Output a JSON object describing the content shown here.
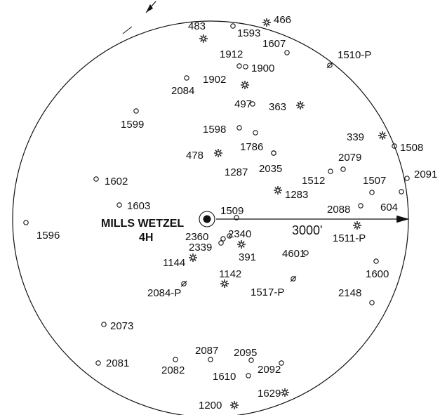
{
  "center_well": {
    "name_line1": "MILLS WETZEL",
    "name_line2": "4H"
  },
  "radius_label": "3000'",
  "wells": [
    {
      "label": "466",
      "type": "gas"
    },
    {
      "label": "483",
      "type": "gas"
    },
    {
      "label": "1593",
      "type": "location"
    },
    {
      "label": "1607",
      "type": "location"
    },
    {
      "label": "1510-P",
      "type": "plugged"
    },
    {
      "label": "1912",
      "type": "location"
    },
    {
      "label": "1900",
      "type": "location"
    },
    {
      "label": "1902",
      "type": "gas"
    },
    {
      "label": "2084",
      "type": "location"
    },
    {
      "label": "497",
      "type": "location"
    },
    {
      "label": "363",
      "type": "gas"
    },
    {
      "label": "1599",
      "type": "location"
    },
    {
      "label": "1598",
      "type": "location"
    },
    {
      "label": "1786",
      "type": "location"
    },
    {
      "label": "339",
      "type": "gas"
    },
    {
      "label": "1508",
      "type": "location"
    },
    {
      "label": "478",
      "type": "gas"
    },
    {
      "label": "2079",
      "type": "location"
    },
    {
      "label": "1287",
      "type": "location"
    },
    {
      "label": "2035",
      "type": "location"
    },
    {
      "label": "1512",
      "type": "location"
    },
    {
      "label": "1507",
      "type": "location"
    },
    {
      "label": "2091",
      "type": "location"
    },
    {
      "label": "1602",
      "type": "location"
    },
    {
      "label": "1283",
      "type": "gas"
    },
    {
      "label": "1603",
      "type": "location"
    },
    {
      "label": "604",
      "type": "location"
    },
    {
      "label": "1509",
      "type": "location"
    },
    {
      "label": "2088",
      "type": "location"
    },
    {
      "label": "1596",
      "type": "location"
    },
    {
      "label": "2360",
      "type": "location"
    },
    {
      "label": "2340",
      "type": "location"
    },
    {
      "label": "1511-P",
      "type": "gas"
    },
    {
      "label": "2339",
      "type": "location"
    },
    {
      "label": "391",
      "type": "gas"
    },
    {
      "label": "4601",
      "type": "location"
    },
    {
      "label": "1144",
      "type": "gas"
    },
    {
      "label": "1600",
      "type": "location"
    },
    {
      "label": "1142",
      "type": "gas"
    },
    {
      "label": "2084-P",
      "type": "plugged"
    },
    {
      "label": "1517-P",
      "type": "plugged"
    },
    {
      "label": "2148",
      "type": "location"
    },
    {
      "label": "2073",
      "type": "location"
    },
    {
      "label": "2087",
      "type": "location"
    },
    {
      "label": "2095",
      "type": "location"
    },
    {
      "label": "2081",
      "type": "location"
    },
    {
      "label": "2082",
      "type": "location"
    },
    {
      "label": "2092",
      "type": "location"
    },
    {
      "label": "1610",
      "type": "location"
    },
    {
      "label": "1629",
      "type": "gas"
    },
    {
      "label": "1200",
      "type": "gas"
    }
  ]
}
